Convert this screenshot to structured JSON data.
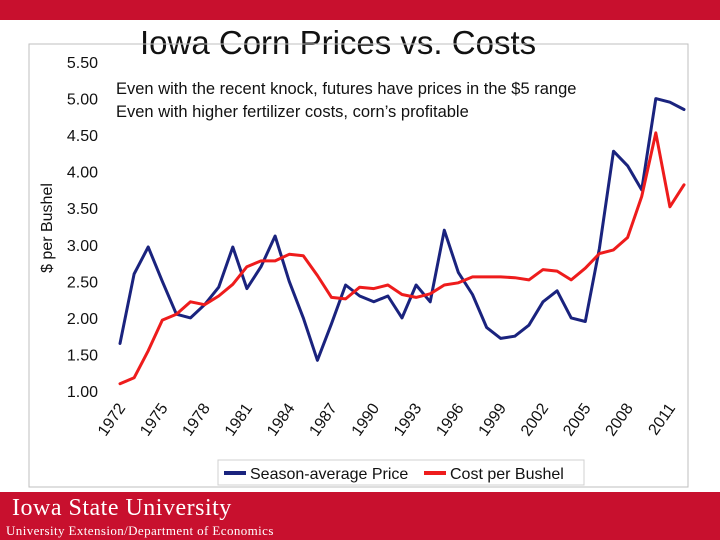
{
  "slide": {
    "title": "Iowa Corn Prices vs. Costs",
    "footer_logo": "Iowa State University",
    "footer_subtitle": "University Extension/Department of Economics",
    "colors": {
      "brand": "#c8102e",
      "price": "#1a237e",
      "cost": "#ee1c1c"
    }
  },
  "chart_data": {
    "type": "line",
    "title": "Iowa Corn Prices vs. Costs",
    "xlabel": "",
    "ylabel": "$ per Bushel",
    "ylim": [
      1.0,
      5.5
    ],
    "yticks": [
      "1.00",
      "1.50",
      "2.00",
      "2.50",
      "3.00",
      "3.50",
      "4.00",
      "4.50",
      "5.00",
      "5.50"
    ],
    "xtick_labels": [
      "1972",
      "1975",
      "1978",
      "1981",
      "1984",
      "1987",
      "1990",
      "1993",
      "1996",
      "1999",
      "2002",
      "2005",
      "2008",
      "2011"
    ],
    "x": [
      1972,
      1973,
      1974,
      1975,
      1976,
      1977,
      1978,
      1979,
      1980,
      1981,
      1982,
      1983,
      1984,
      1985,
      1986,
      1987,
      1988,
      1989,
      1990,
      1991,
      1992,
      1993,
      1994,
      1995,
      1996,
      1997,
      1998,
      1999,
      2000,
      2001,
      2002,
      2003,
      2004,
      2005,
      2006,
      2007,
      2008,
      2009,
      2010,
      2011,
      2012
    ],
    "grid": false,
    "legend_position": "bottom",
    "annotations": [
      "Even with the recent knock, futures have prices in the $5 range",
      "Even with higher fertilizer costs, corn’s profitable"
    ],
    "series": [
      {
        "name": "Season-average Price",
        "color": "#1a237e",
        "values": [
          1.65,
          2.6,
          2.97,
          2.5,
          2.05,
          2.0,
          2.18,
          2.42,
          2.97,
          2.4,
          2.7,
          3.12,
          2.5,
          2.0,
          1.42,
          1.92,
          2.45,
          2.3,
          2.22,
          2.3,
          2.0,
          2.45,
          2.22,
          3.2,
          2.62,
          2.32,
          1.87,
          1.72,
          1.75,
          1.9,
          2.22,
          2.37,
          2.0,
          1.95,
          2.95,
          4.28,
          4.08,
          3.75,
          5.0,
          4.95,
          4.85
        ]
      },
      {
        "name": "Cost per Bushel",
        "color": "#ee1c1c",
        "values": [
          1.1,
          1.18,
          1.55,
          1.97,
          2.05,
          2.22,
          2.18,
          2.3,
          2.46,
          2.7,
          2.78,
          2.78,
          2.87,
          2.85,
          2.58,
          2.28,
          2.26,
          2.42,
          2.4,
          2.45,
          2.32,
          2.28,
          2.33,
          2.45,
          2.48,
          2.56,
          2.56,
          2.56,
          2.55,
          2.52,
          2.66,
          2.64,
          2.52,
          2.68,
          2.88,
          2.93,
          3.1,
          3.66,
          4.53,
          3.52,
          3.82
        ]
      }
    ]
  }
}
